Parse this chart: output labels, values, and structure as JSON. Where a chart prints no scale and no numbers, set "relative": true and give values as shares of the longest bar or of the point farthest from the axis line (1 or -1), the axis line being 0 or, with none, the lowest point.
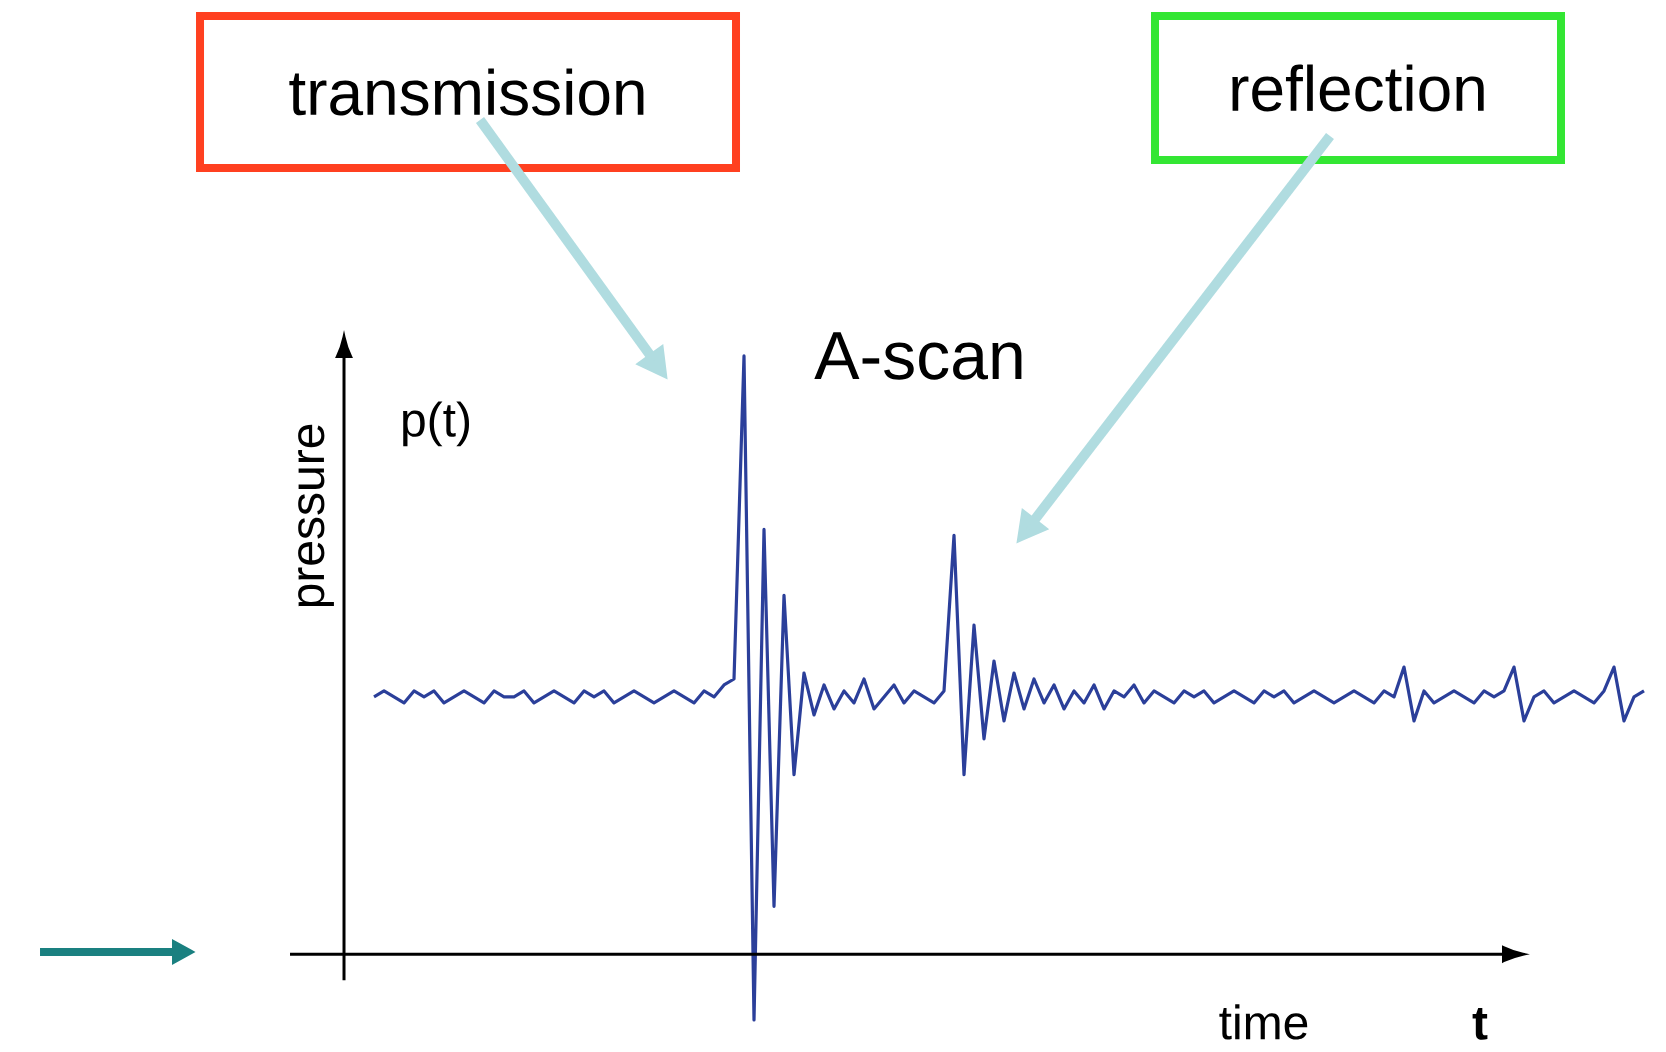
{
  "chart_data": {
    "type": "line",
    "title": "A-scan",
    "xlabel": "time",
    "ylabel": "pressure",
    "relative": true,
    "color": "#2b3f9a",
    "annotations": [
      "transmission",
      "reflection",
      "p(t)",
      "t"
    ],
    "categories": [
      null,
      null,
      null,
      null,
      null,
      null,
      null,
      null,
      null,
      null,
      null,
      null,
      null,
      null,
      null,
      null,
      null,
      null,
      null,
      null,
      null,
      null,
      null,
      null,
      null,
      null,
      null,
      null,
      null,
      null,
      null,
      null,
      null,
      null,
      null,
      null,
      null,
      null,
      null,
      null,
      null,
      null,
      null,
      null,
      null,
      null,
      null,
      null,
      null,
      null,
      null,
      null,
      null,
      null,
      null,
      null,
      null,
      null,
      null,
      null,
      null,
      null,
      null,
      null,
      null,
      null,
      null,
      null,
      null,
      null,
      null,
      null,
      null,
      null,
      null,
      null,
      null,
      null,
      null,
      null,
      null,
      null,
      null,
      null,
      null,
      null,
      null,
      null,
      null,
      null,
      null,
      null,
      null,
      null,
      null,
      null,
      null,
      null,
      null,
      null,
      null,
      null,
      null,
      null,
      null,
      null,
      null,
      null,
      null,
      null,
      null,
      null,
      null,
      null,
      null,
      null,
      null,
      null,
      null,
      null,
      null,
      null,
      null,
      null,
      null,
      null,
      null,
      null
    ],
    "values": [
      0.43,
      0.44,
      0.43,
      0.42,
      0.44,
      0.43,
      0.44,
      0.42,
      0.43,
      0.44,
      0.43,
      0.42,
      0.44,
      0.43,
      0.43,
      0.44,
      0.42,
      0.43,
      0.44,
      0.43,
      0.42,
      0.44,
      0.43,
      0.44,
      0.42,
      0.43,
      0.44,
      0.43,
      0.42,
      0.43,
      0.44,
      0.43,
      0.42,
      0.44,
      0.43,
      0.45,
      0.46,
      1.0,
      -0.11,
      0.71,
      0.08,
      0.6,
      0.3,
      0.47,
      0.4,
      0.45,
      0.41,
      0.44,
      0.42,
      0.46,
      0.41,
      0.43,
      0.45,
      0.42,
      0.44,
      0.43,
      0.42,
      0.44,
      0.7,
      0.3,
      0.55,
      0.36,
      0.49,
      0.39,
      0.47,
      0.41,
      0.46,
      0.42,
      0.45,
      0.41,
      0.44,
      0.42,
      0.45,
      0.41,
      0.44,
      0.43,
      0.45,
      0.42,
      0.44,
      0.43,
      0.42,
      0.44,
      0.43,
      0.44,
      0.42,
      0.43,
      0.44,
      0.43,
      0.42,
      0.44,
      0.43,
      0.44,
      0.42,
      0.43,
      0.44,
      0.43,
      0.42,
      0.43,
      0.44,
      0.43,
      0.42,
      0.44,
      0.43,
      0.48,
      0.39,
      0.44,
      0.42,
      0.43,
      0.44,
      0.43,
      0.42,
      0.44,
      0.43,
      0.44,
      0.48,
      0.39,
      0.43,
      0.44,
      0.42,
      0.43,
      0.44,
      0.43,
      0.42,
      0.44,
      0.48,
      0.39,
      0.43,
      0.44
    ]
  }
}
